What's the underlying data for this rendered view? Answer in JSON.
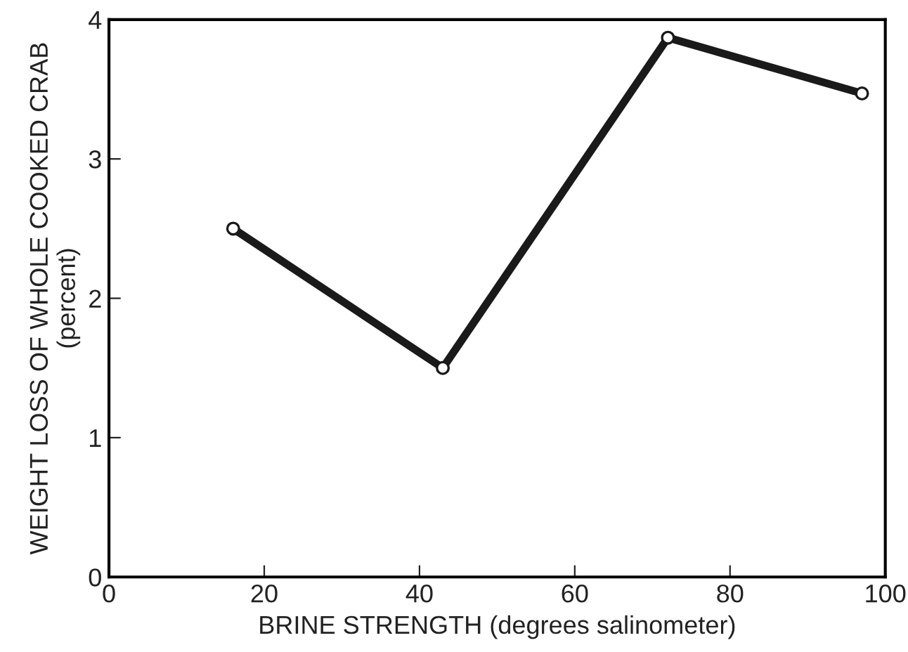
{
  "chart_data": {
    "type": "line",
    "xlabel": "BRINE STRENGTH (degrees salinometer)",
    "ylabel": "WEIGHT LOSS OF WHOLE COOKED CRAB\n(percent)",
    "x": [
      16,
      43,
      72,
      97
    ],
    "series": [
      {
        "color": "#1a1a1a",
        "values": [
          2.5,
          1.5,
          3.87,
          3.47
        ]
      }
    ],
    "xlim": [
      0,
      100
    ],
    "xticks": [
      0,
      20,
      40,
      60,
      80,
      100
    ],
    "ylim": [
      0,
      4
    ],
    "yticks": [
      0,
      1,
      2,
      3,
      4
    ],
    "grid": false,
    "legend": false,
    "marker": "circle",
    "line_style": "solid"
  }
}
